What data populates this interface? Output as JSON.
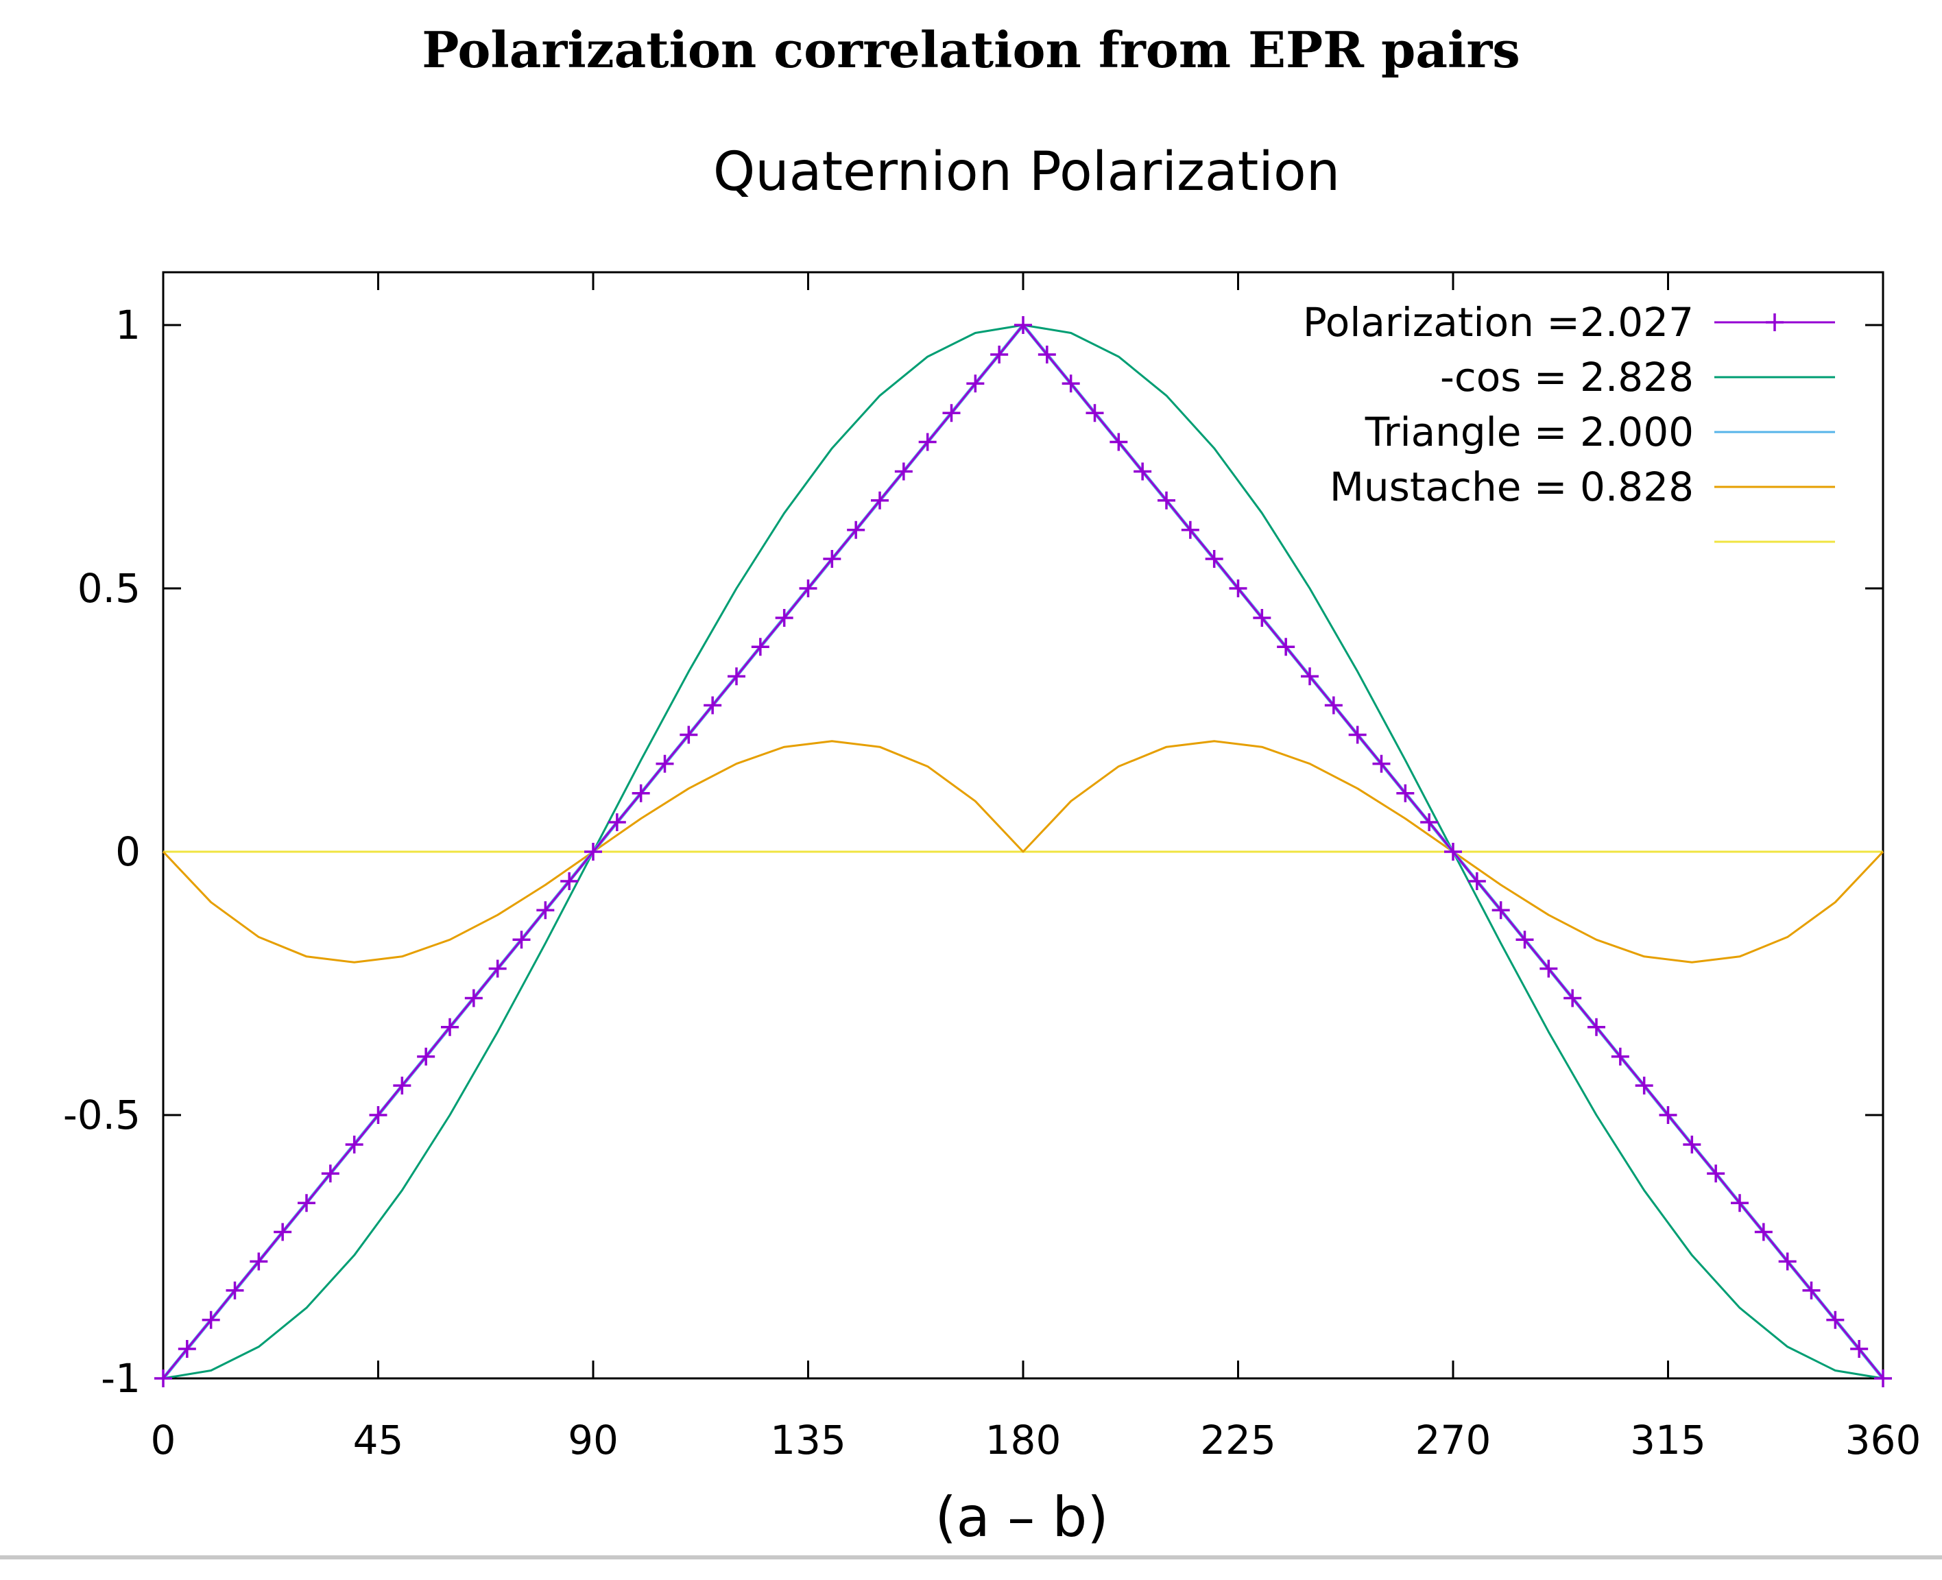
{
  "figure": {
    "caption_title": "Polarization correlation from EPR pairs"
  },
  "chart_data": {
    "type": "line",
    "title": "Quaternion Polarization",
    "xlabel": "(a – b)",
    "ylabel": "",
    "xlim": [
      0,
      360
    ],
    "ylim": [
      -1,
      1
    ],
    "xticks": [
      0,
      45,
      90,
      135,
      180,
      225,
      270,
      315,
      360
    ],
    "xtick_labels": [
      "0",
      "45",
      "90",
      "135",
      "180",
      "225",
      "270",
      "315",
      "360"
    ],
    "yticks": [
      1,
      0.5,
      0,
      -0.5,
      -1
    ],
    "ytick_labels": [
      "1",
      "0.5",
      "0",
      "-0.5",
      "-1"
    ],
    "grid": false,
    "legend_position": "top-right",
    "series": [
      {
        "name": "Polarization =2.027",
        "color": "#9400d3",
        "marker": "plus",
        "x": [
          0,
          5,
          10,
          15,
          20,
          25,
          30,
          35,
          40,
          45,
          50,
          55,
          60,
          65,
          70,
          75,
          80,
          85,
          90,
          95,
          100,
          105,
          110,
          115,
          120,
          125,
          130,
          135,
          140,
          145,
          150,
          155,
          160,
          165,
          170,
          175,
          180,
          185,
          190,
          195,
          200,
          205,
          210,
          215,
          220,
          225,
          230,
          235,
          240,
          245,
          250,
          255,
          260,
          265,
          270,
          275,
          280,
          285,
          290,
          295,
          300,
          305,
          310,
          315,
          320,
          325,
          330,
          335,
          340,
          345,
          350,
          355,
          360
        ],
        "values": [
          -1,
          -0.944,
          -0.889,
          -0.833,
          -0.778,
          -0.722,
          -0.667,
          -0.611,
          -0.556,
          -0.5,
          -0.444,
          -0.389,
          -0.333,
          -0.278,
          -0.222,
          -0.167,
          -0.111,
          -0.056,
          0,
          0.056,
          0.111,
          0.167,
          0.222,
          0.278,
          0.333,
          0.389,
          0.444,
          0.5,
          0.556,
          0.611,
          0.667,
          0.722,
          0.778,
          0.833,
          0.889,
          0.944,
          1,
          0.944,
          0.889,
          0.833,
          0.778,
          0.722,
          0.667,
          0.611,
          0.556,
          0.5,
          0.444,
          0.389,
          0.333,
          0.278,
          0.222,
          0.167,
          0.111,
          0.056,
          0,
          -0.056,
          -0.111,
          -0.167,
          -0.222,
          -0.278,
          -0.333,
          -0.389,
          -0.444,
          -0.5,
          -0.556,
          -0.611,
          -0.667,
          -0.722,
          -0.778,
          -0.833,
          -0.889,
          -0.944,
          -1
        ]
      },
      {
        "name": "-cos = 2.828",
        "color": "#009e73",
        "marker": "none",
        "x": [
          0,
          10,
          20,
          30,
          40,
          50,
          60,
          70,
          80,
          90,
          100,
          110,
          120,
          130,
          140,
          150,
          160,
          170,
          180,
          190,
          200,
          210,
          220,
          230,
          240,
          250,
          260,
          270,
          280,
          290,
          300,
          310,
          320,
          330,
          340,
          350,
          360
        ],
        "values": [
          -1,
          -0.985,
          -0.94,
          -0.866,
          -0.766,
          -0.643,
          -0.5,
          -0.342,
          -0.174,
          0,
          0.174,
          0.342,
          0.5,
          0.643,
          0.766,
          0.866,
          0.94,
          0.985,
          1,
          0.985,
          0.94,
          0.866,
          0.766,
          0.643,
          0.5,
          0.342,
          0.174,
          0,
          -0.174,
          -0.342,
          -0.5,
          -0.643,
          -0.766,
          -0.866,
          -0.94,
          -0.985,
          -1
        ]
      },
      {
        "name": "Triangle = 2.000",
        "color": "#56b4e9",
        "marker": "none",
        "x": [
          0,
          180,
          360
        ],
        "values": [
          -1,
          1,
          -1
        ]
      },
      {
        "name": "Mustache = 0.828",
        "color": "#e69f00",
        "marker": "none",
        "x": [
          0,
          10,
          20,
          30,
          40,
          50,
          60,
          70,
          80,
          90,
          100,
          110,
          120,
          130,
          140,
          150,
          160,
          170,
          180,
          190,
          200,
          210,
          220,
          230,
          240,
          250,
          260,
          270,
          280,
          290,
          300,
          310,
          320,
          330,
          340,
          350,
          360
        ],
        "values": [
          0,
          -0.096,
          -0.162,
          -0.199,
          -0.21,
          -0.199,
          -0.167,
          -0.12,
          -0.063,
          0,
          0.063,
          0.12,
          0.167,
          0.199,
          0.21,
          0.199,
          0.162,
          0.096,
          0,
          0.096,
          0.162,
          0.199,
          0.21,
          0.199,
          0.167,
          0.12,
          0.063,
          0,
          -0.063,
          -0.12,
          -0.167,
          -0.199,
          -0.21,
          -0.199,
          -0.162,
          -0.096,
          0
        ]
      },
      {
        "name": "",
        "color": "#f0e442",
        "marker": "none",
        "x": [
          0,
          360
        ],
        "values": [
          0,
          0
        ]
      }
    ]
  }
}
